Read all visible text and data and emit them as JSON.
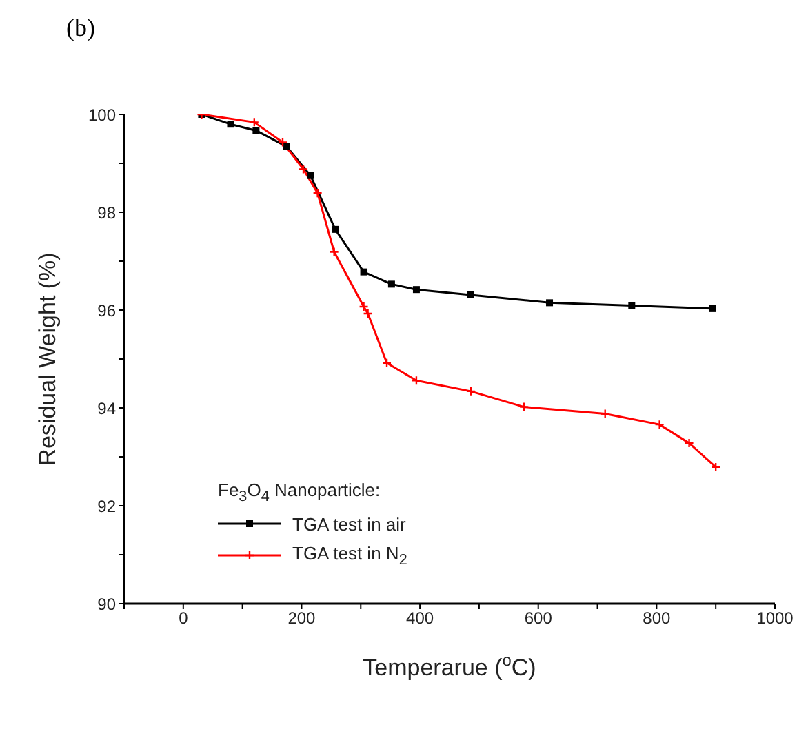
{
  "chart_data": {
    "type": "line",
    "title": "(b)",
    "xlabel": "Temperarue ($^{o}$C)",
    "ylabel": "Residual Weight (%)",
    "legend_title": "Fe$_{3}$O$_{4}$ Nanoparticle:",
    "xlim": [
      -100,
      1000
    ],
    "xticks": [
      {
        "value": -100,
        "label": null
      },
      0,
      {
        "value": 100,
        "label": null
      },
      200,
      {
        "value": 300,
        "label": null
      },
      400,
      {
        "value": 500,
        "label": null
      },
      600,
      {
        "value": 700,
        "label": null
      },
      800,
      {
        "value": 900,
        "label": null
      },
      1000
    ],
    "ylim": [
      90,
      100
    ],
    "yticks": [
      90,
      {
        "value": 91,
        "label": null
      },
      92,
      {
        "value": 93,
        "label": null
      },
      94,
      {
        "value": 95,
        "label": null
      },
      96,
      {
        "value": 97,
        "label": null
      },
      98,
      {
        "value": 99,
        "label": null
      },
      100
    ],
    "legend": "bottom left",
    "line_style": "solid",
    "series": [
      {
        "name": "TGA test in air",
        "color": "#000000",
        "marker": "square",
        "x": [
          31,
          80,
          123,
          175,
          215,
          257,
          305,
          352,
          394,
          486,
          619,
          758,
          895
        ],
        "values": [
          100,
          99.8,
          99.67,
          99.34,
          98.75,
          97.65,
          96.78,
          96.53,
          96.42,
          96.31,
          96.15,
          96.09,
          96.03
        ]
      },
      {
        "name": "TGA test in N$_{2}$",
        "color": "#ff0000",
        "marker": "cross",
        "x": [
          31,
          120,
          168,
          203,
          227,
          255,
          305,
          312,
          344,
          394,
          486,
          576,
          713,
          805,
          855,
          900
        ],
        "values": [
          100,
          99.84,
          99.43,
          98.88,
          98.39,
          97.19,
          96.07,
          95.93,
          94.92,
          94.56,
          94.34,
          94.02,
          93.88,
          93.66,
          93.28,
          92.79
        ]
      }
    ]
  }
}
